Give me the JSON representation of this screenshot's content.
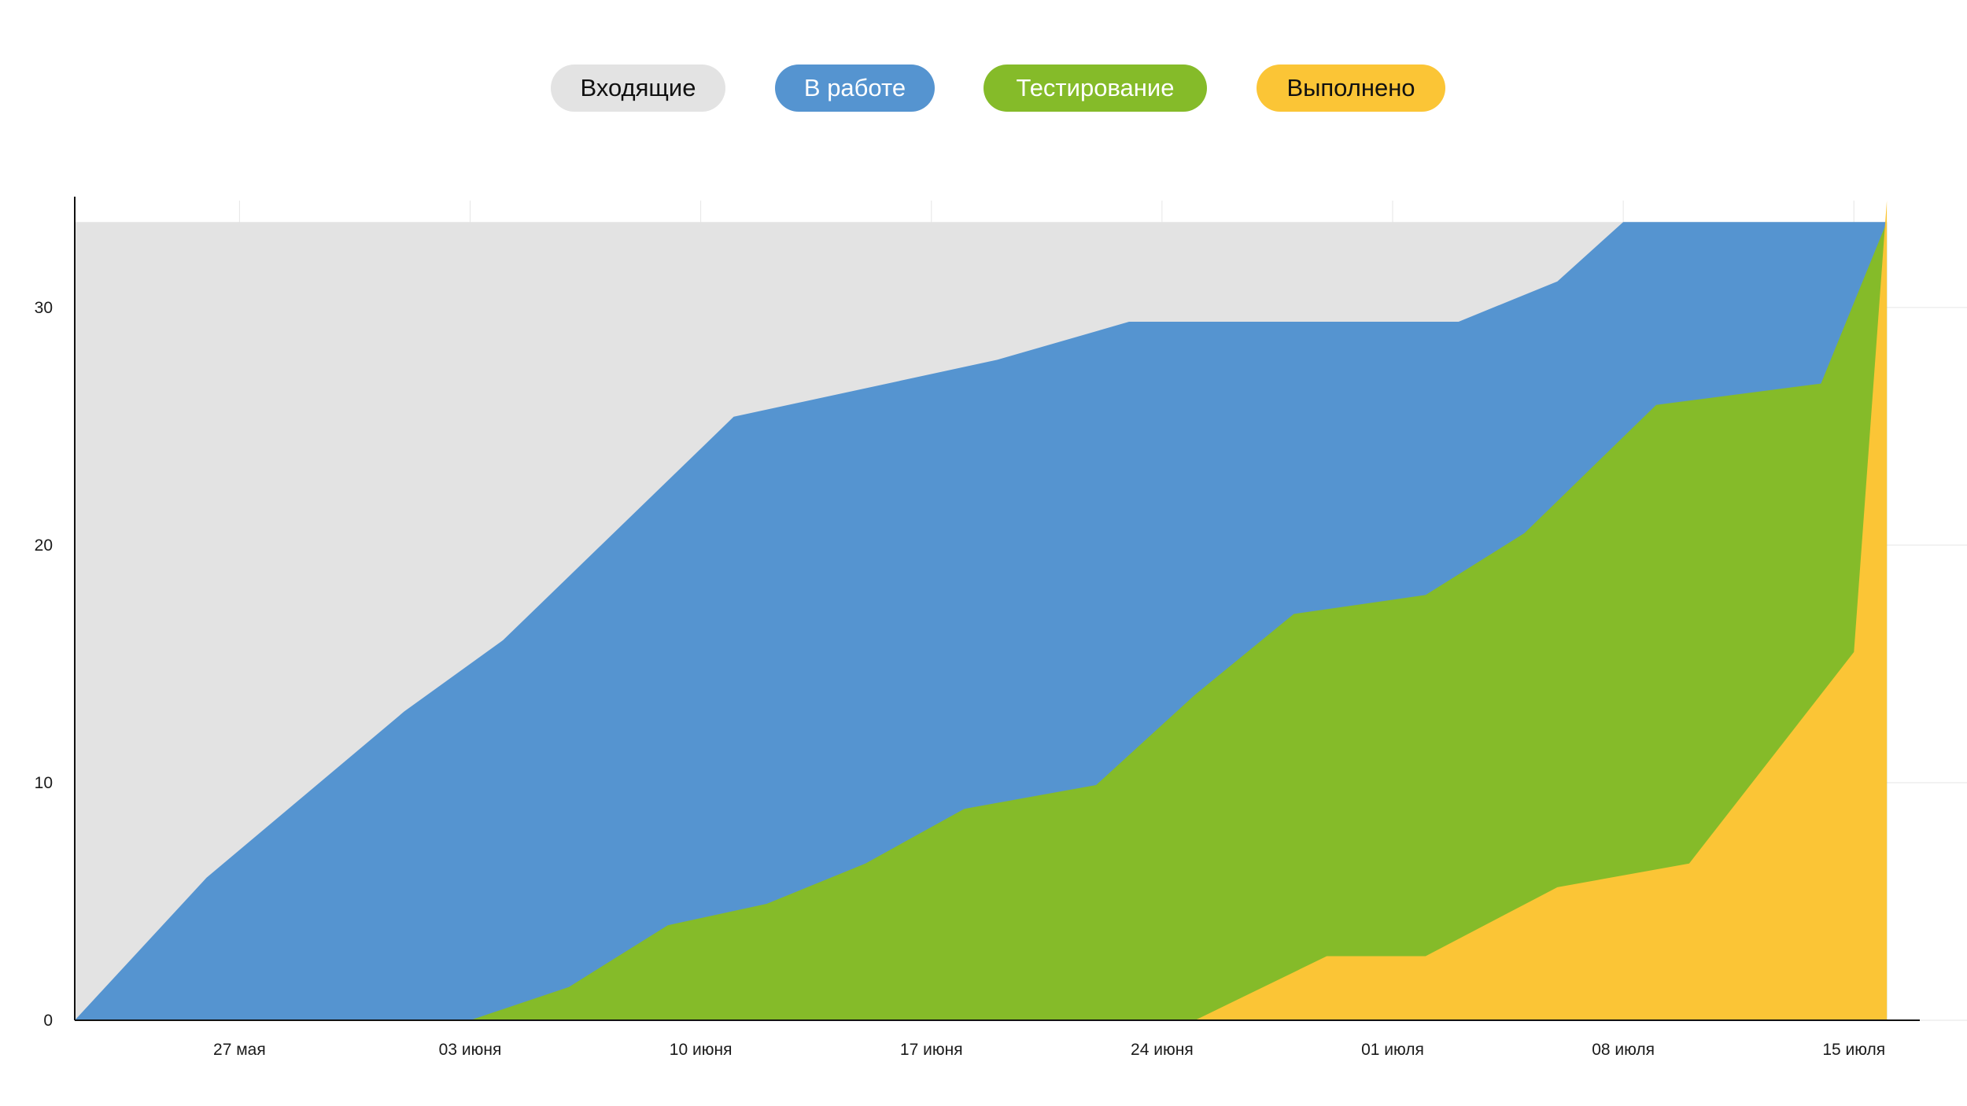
{
  "legend": [
    {
      "label": "Входящие",
      "bg": "#e3e3e3",
      "fg": "#111111"
    },
    {
      "label": "В работе",
      "bg": "#5594d0",
      "fg": "#ffffff"
    },
    {
      "label": "Тестирование",
      "bg": "#85bb29",
      "fg": "#ffffff"
    },
    {
      "label": "Выполнено",
      "bg": "#fbc536",
      "fg": "#111111"
    }
  ],
  "chart_data": {
    "type": "area",
    "stacked": true,
    "xlim": [
      "2024-05-22",
      "2024-07-17"
    ],
    "ylim": [
      0,
      34.5
    ],
    "x_tick_dates": [
      "2024-05-27",
      "2024-06-03",
      "2024-06-10",
      "2024-06-17",
      "2024-06-24",
      "2024-07-01",
      "2024-07-08",
      "2024-07-15"
    ],
    "x_ticks": [
      "27 мая",
      "03 июня",
      "10 июня",
      "17 июня",
      "24 июня",
      "01 июля",
      "08 июля",
      "15 июля"
    ],
    "y_ticks": [
      0,
      10,
      20,
      30
    ],
    "grid": true,
    "legend_position": "top-center",
    "series": [
      {
        "name": "Входящие",
        "color": "#e3e3e3",
        "points": [
          [
            "2024-05-22",
            0
          ],
          [
            "2024-05-22",
            33.6
          ],
          [
            "2024-07-16",
            33.6
          ]
        ]
      },
      {
        "name": "В работе",
        "color": "#5594d0",
        "points": [
          [
            "2024-05-22",
            0
          ],
          [
            "2024-05-26",
            6
          ],
          [
            "2024-06-01",
            13
          ],
          [
            "2024-06-04",
            16
          ],
          [
            "2024-06-11",
            25.4
          ],
          [
            "2024-06-19",
            27.8
          ],
          [
            "2024-06-23",
            29.4
          ],
          [
            "2024-07-03",
            29.4
          ],
          [
            "2024-07-06",
            31.1
          ],
          [
            "2024-07-08",
            33.6
          ],
          [
            "2024-07-16",
            33.6
          ]
        ]
      },
      {
        "name": "Тестирование",
        "color": "#85bb29",
        "points": [
          [
            "2024-06-03",
            0
          ],
          [
            "2024-06-06",
            1.4
          ],
          [
            "2024-06-09",
            4
          ],
          [
            "2024-06-12",
            4.9
          ],
          [
            "2024-06-15",
            6.6
          ],
          [
            "2024-06-18",
            8.9
          ],
          [
            "2024-06-22",
            9.9
          ],
          [
            "2024-06-25",
            13.7
          ],
          [
            "2024-06-28",
            17.1
          ],
          [
            "2024-07-02",
            17.9
          ],
          [
            "2024-07-05",
            20.5
          ],
          [
            "2024-07-09",
            25.9
          ],
          [
            "2024-07-14",
            26.8
          ],
          [
            "2024-07-16",
            33.6
          ]
        ]
      },
      {
        "name": "Выполнено",
        "color": "#fbc536",
        "points": [
          [
            "2024-06-25",
            0
          ],
          [
            "2024-06-29",
            2.7
          ],
          [
            "2024-07-02",
            2.7
          ],
          [
            "2024-07-06",
            5.6
          ],
          [
            "2024-07-10",
            6.6
          ],
          [
            "2024-07-15",
            15.5
          ],
          [
            "2024-07-16",
            34.5
          ]
        ]
      }
    ]
  }
}
